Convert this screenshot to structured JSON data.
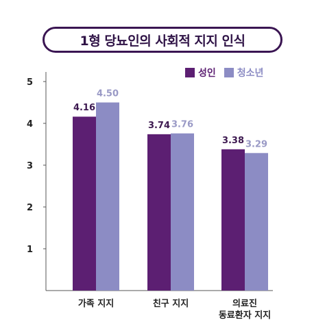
{
  "chart_data": {
    "type": "bar",
    "title": "1형 당뇨인의 사회적 지지 인식",
    "categories": [
      [
        "가족 지지"
      ],
      [
        "친구 지지"
      ],
      [
        "의료진",
        "동료환자 지지"
      ]
    ],
    "series": [
      {
        "name": "성인",
        "values": [
          4.16,
          3.74,
          3.38
        ],
        "labels": [
          "4.16",
          "3.74",
          "3.38"
        ]
      },
      {
        "name": "청소년",
        "values": [
          4.5,
          3.76,
          3.29
        ],
        "labels": [
          "4.50",
          "3.76",
          "3.29"
        ]
      }
    ],
    "ylim": [
      0,
      5
    ],
    "yticks": [
      "1",
      "2",
      "3",
      "4",
      "5"
    ],
    "colors": {
      "성인": "#5c1f72",
      "청소년": "#8c8cc4",
      "series_label_성인": "#3d1950",
      "series_label_청소년": "#9a9ac6"
    },
    "legend": "top-right",
    "grid": false
  }
}
